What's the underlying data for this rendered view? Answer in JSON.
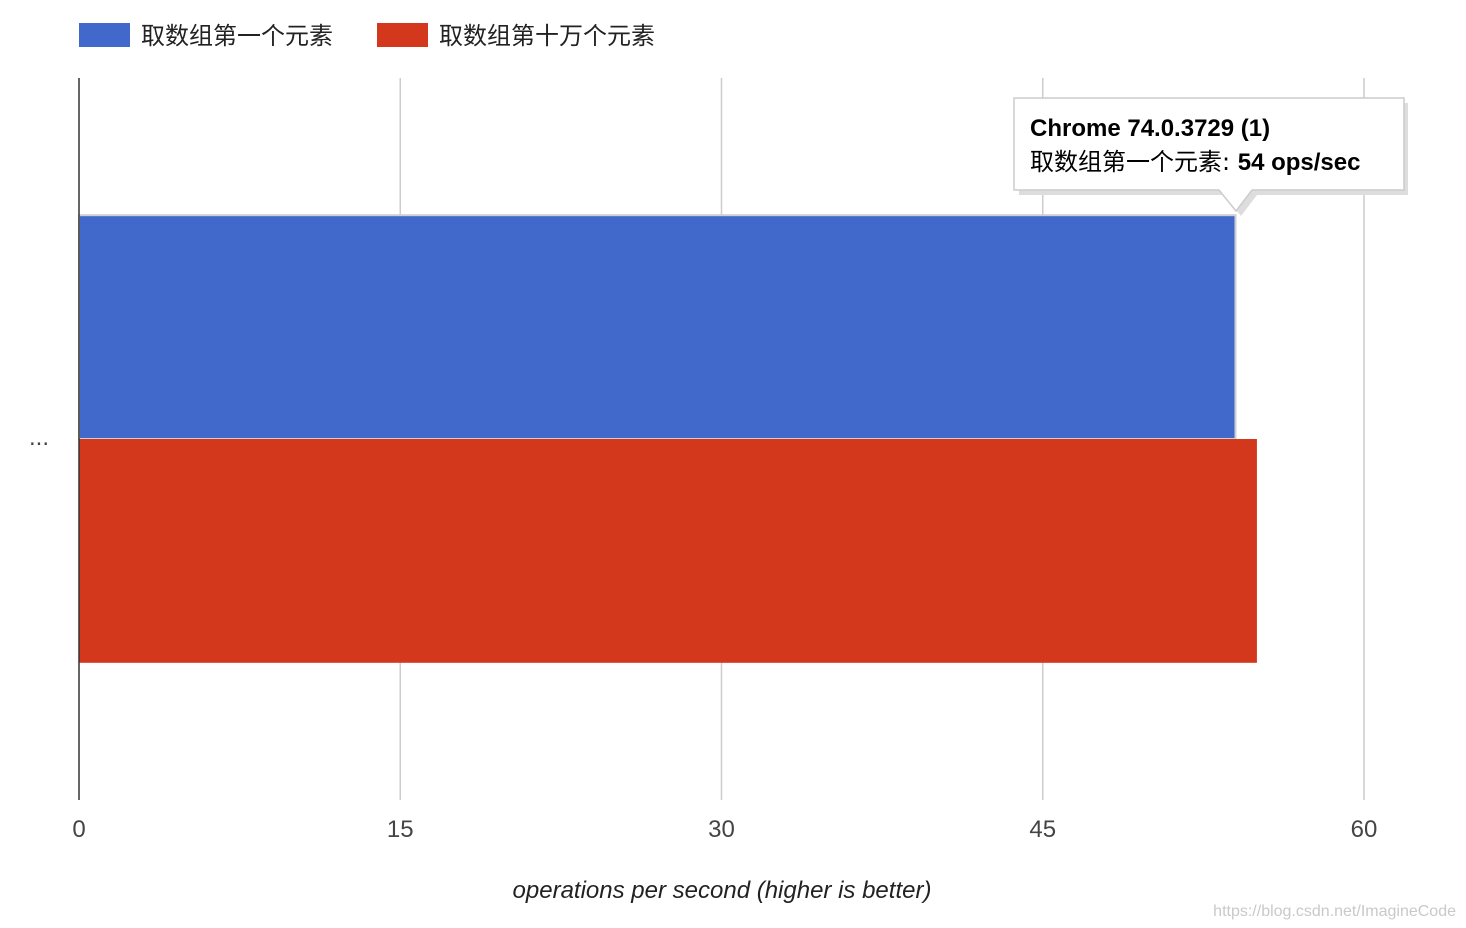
{
  "chart_data": {
    "type": "bar",
    "orientation": "horizontal",
    "categories": [
      "..."
    ],
    "series": [
      {
        "name": "取数组第一个元素",
        "values": [
          54
        ],
        "color": "#4169CB"
      },
      {
        "name": "取数组第十万个元素",
        "values": [
          55
        ],
        "color": "#D3381C"
      }
    ],
    "xlabel": "operations per second (higher is better)",
    "ylabel": "",
    "xlim": [
      0,
      60
    ],
    "xticks": [
      0,
      15,
      30,
      45,
      60
    ],
    "grid": true,
    "legend": "top-left"
  },
  "tooltip": {
    "title": "Chrome 74.0.3729 (1)",
    "series_label": "取数组第一个元素",
    "separator": ": ",
    "value_text": "54 ops/sec"
  },
  "watermark": "https://blog.csdn.net/ImagineCode"
}
